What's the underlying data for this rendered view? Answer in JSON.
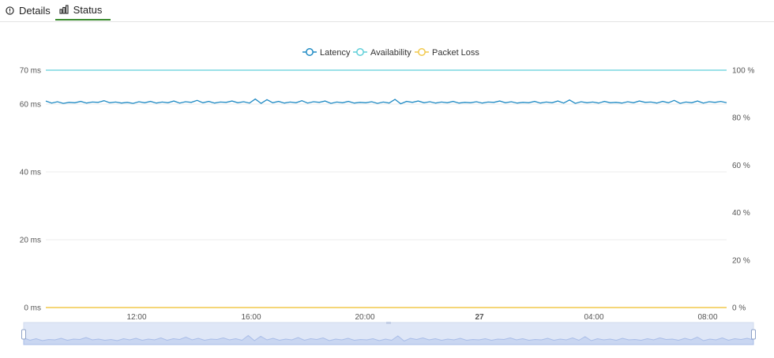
{
  "tabs": [
    {
      "label": "Details",
      "icon": "info-circle-icon",
      "active": false
    },
    {
      "label": "Status",
      "icon": "bar-chart-icon",
      "active": true
    }
  ],
  "colors": {
    "latency": "#1f8ac4",
    "availability": "#5fcfd9",
    "packet_loss": "#f2c94c",
    "tab_active": "#3a8a2e",
    "zoom_fill": "#dfe7f7",
    "zoom_line": "#a9bde8"
  },
  "chart_data": {
    "type": "line",
    "legend": [
      "Latency",
      "Availability",
      "Packet Loss"
    ],
    "legend_position": "top-center",
    "x_ticks": [
      "12:00",
      "16:00",
      "20:00",
      "27",
      "04:00",
      "08:00"
    ],
    "y_left_ticks": [
      "0 ms",
      "20 ms",
      "40 ms",
      "60 ms",
      "70 ms"
    ],
    "y_right_ticks": [
      "0 %",
      "20 %",
      "40 %",
      "60 %",
      "80 %",
      "100 %"
    ],
    "y_left_range": [
      0,
      70
    ],
    "y_right_range": [
      0,
      100
    ],
    "grid": true,
    "series": [
      {
        "name": "Latency",
        "axis": "left",
        "unit": "ms",
        "values": [
          60.9,
          60.3,
          60.7,
          60.2,
          60.5,
          60.4,
          60.8,
          60.3,
          60.6,
          60.5,
          61.0,
          60.4,
          60.6,
          60.3,
          60.5,
          60.2,
          60.7,
          60.4,
          60.8,
          60.3,
          60.6,
          60.4,
          60.9,
          60.3,
          60.7,
          60.5,
          61.1,
          60.4,
          60.8,
          60.3,
          60.6,
          60.5,
          60.9,
          60.4,
          60.7,
          60.3,
          61.5,
          60.2,
          61.3,
          60.4,
          60.8,
          60.3,
          60.6,
          60.4,
          61.0,
          60.3,
          60.7,
          60.5,
          60.9,
          60.2,
          60.6,
          60.4,
          60.8,
          60.3,
          60.5,
          60.4,
          60.7,
          60.2,
          60.6,
          60.3,
          61.4,
          60.1,
          60.8,
          60.5,
          60.9,
          60.4,
          60.7,
          60.3,
          60.6,
          60.4,
          60.8,
          60.3,
          60.5,
          60.4,
          60.7,
          60.3,
          60.6,
          60.5,
          60.9,
          60.4,
          60.7,
          60.3,
          60.5,
          60.4,
          60.8,
          60.3,
          60.6,
          60.4,
          60.9,
          60.3,
          61.2,
          60.2,
          60.7,
          60.4,
          60.6,
          60.3,
          60.8,
          60.4,
          60.5,
          60.3,
          60.7,
          60.4,
          60.9,
          60.5,
          60.6,
          60.3,
          60.8,
          60.4,
          61.1,
          60.2,
          60.6,
          60.4,
          60.9,
          60.3,
          60.7,
          60.5,
          60.8,
          60.4
        ]
      },
      {
        "name": "Availability",
        "axis": "right",
        "unit": "%",
        "values": [
          100
        ]
      },
      {
        "name": "Packet Loss",
        "axis": "right",
        "unit": "%",
        "values": [
          0
        ]
      }
    ],
    "zoom_range": [
      0,
      100
    ]
  }
}
